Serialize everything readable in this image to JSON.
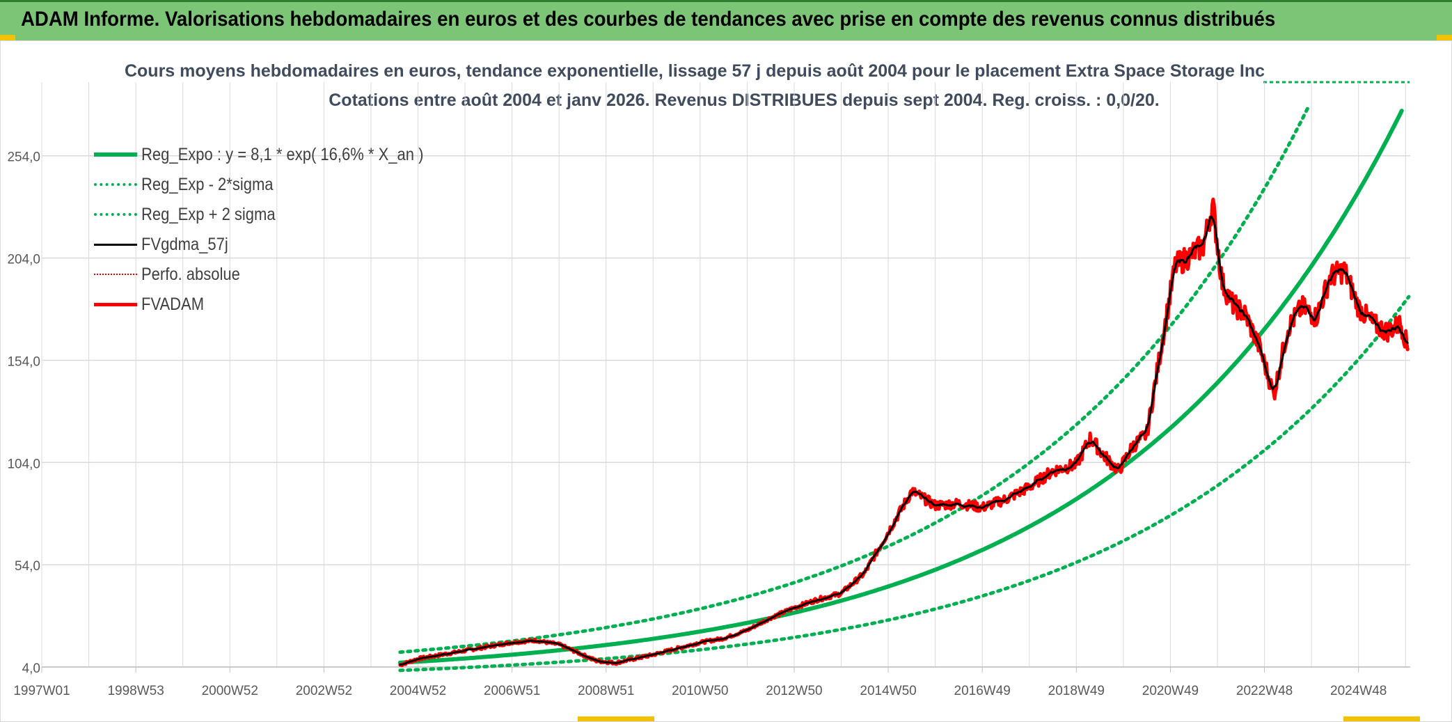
{
  "header": {
    "title": "ADAM Informe. Valorisations hebdomadaires en euros et des courbes de tendances avec prise en compte des revenus connus distribués"
  },
  "chart_data": {
    "type": "line",
    "title": "Cours moyens hebdomadaires en euros, tendance exponentielle, lissage 57 j depuis août 2004 pour le placement Extra Space Storage Inc",
    "subtitle": "Cotations entre août 2004 et janv 2026. Revenus DISTRIBUES depuis sept 2004. Reg. croiss. : 0,0/20.",
    "xlabel": "",
    "ylabel": "",
    "x_tick_labels": [
      "1997W01",
      "1998W53",
      "2000W52",
      "2002W52",
      "2004W52",
      "2006W51",
      "2008W51",
      "2010W50",
      "2012W50",
      "2014W50",
      "2016W49",
      "2018W49",
      "2020W49",
      "2022W48",
      "2024W48"
    ],
    "x_range": [
      1997.0,
      2026.1
    ],
    "y_tick_labels": [
      "4,0",
      "54,0",
      "104,0",
      "154,0",
      "204,0",
      "254,0"
    ],
    "ylim": [
      4,
      290
    ],
    "grid": true,
    "legend_position": "top-left",
    "regression": {
      "a": 8.1,
      "rate": 0.166,
      "start_year": 2004.62,
      "sigma_factor_low": 0.65,
      "sigma_factor_high": 1.35
    },
    "series": [
      {
        "name": "Reg_Expo : y = 8,1 * exp( 16,6% *  X_an )",
        "color": "#00b050",
        "style": "solid",
        "width": 6
      },
      {
        "name": "Reg_Exp - 2*sigma",
        "color": "#00b050",
        "style": "dotted",
        "width": 5
      },
      {
        "name": "Reg_Exp + 2 sigma",
        "color": "#00b050",
        "style": "dotted",
        "width": 5
      },
      {
        "name": "FVgdma_57j",
        "color": "#000000",
        "style": "solid",
        "width": 3
      },
      {
        "name": "Perfo. absolue",
        "color": "#e00000",
        "style": "dotted",
        "width": 3
      },
      {
        "name": "FVADAM",
        "color": "#ff0000",
        "style": "solid",
        "width": 5,
        "x": [
          2004.62,
          2005.0,
          2005.5,
          2006.0,
          2006.5,
          2007.0,
          2007.5,
          2008.0,
          2008.4,
          2008.8,
          2009.2,
          2009.6,
          2010.0,
          2010.5,
          2011.0,
          2011.5,
          2012.0,
          2012.5,
          2013.0,
          2013.5,
          2014.0,
          2014.5,
          2015.0,
          2015.5,
          2016.0,
          2016.5,
          2017.0,
          2017.5,
          2018.0,
          2018.5,
          2019.0,
          2019.3,
          2019.6,
          2019.9,
          2020.2,
          2020.5,
          2020.8,
          2021.1,
          2021.4,
          2021.7,
          2021.9,
          2022.1,
          2022.3,
          2022.6,
          2022.9,
          2023.2,
          2023.5,
          2023.8,
          2024.1,
          2024.4,
          2024.7,
          2025.0,
          2025.3,
          2025.6,
          2025.9,
          2026.05
        ],
        "y": [
          5,
          8,
          10,
          12,
          14,
          16,
          17,
          15,
          11,
          7,
          6,
          8,
          10,
          13,
          16,
          18,
          22,
          28,
          33,
          37,
          40,
          50,
          70,
          90,
          83,
          84,
          82,
          86,
          92,
          100,
          103,
          116,
          107,
          100,
          112,
          118,
          160,
          200,
          205,
          210,
          230,
          192,
          182,
          176,
          160,
          137,
          170,
          180,
          175,
          195,
          198,
          180,
          172,
          168,
          172,
          160
        ]
      }
    ]
  }
}
